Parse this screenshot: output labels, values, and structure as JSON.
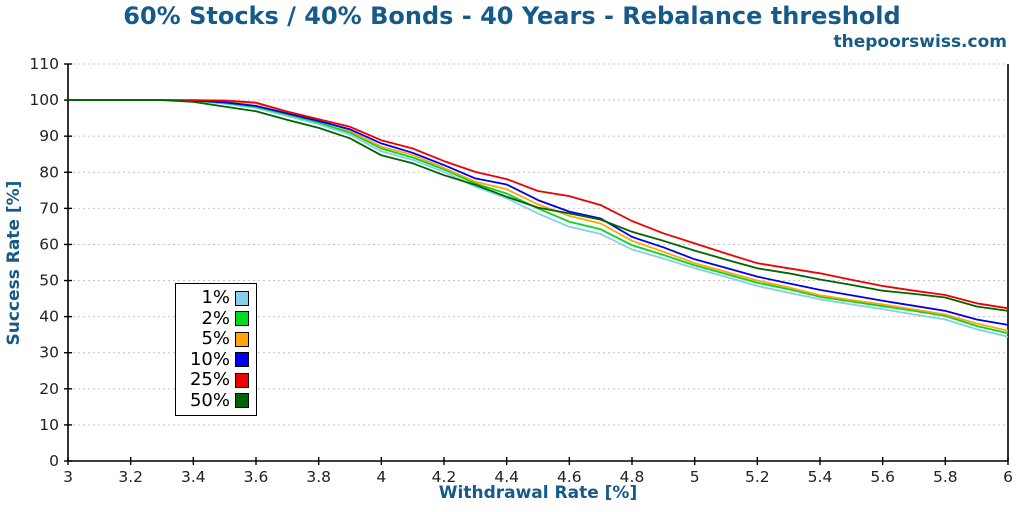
{
  "header": {
    "title": "60% Stocks / 40% Bonds - 40 Years - Rebalance threshold",
    "watermark": "thepoorswiss.com"
  },
  "chart_data": {
    "type": "line",
    "title": "60% Stocks / 40% Bonds - 40 Years - Rebalance threshold",
    "xlabel": "Withdrawal Rate [%]",
    "ylabel": "Success Rate [%]",
    "xlim": [
      3,
      6
    ],
    "ylim": [
      0,
      110
    ],
    "xticks": [
      3,
      3.2,
      3.4,
      3.6,
      3.8,
      4,
      4.2,
      4.4,
      4.6,
      4.8,
      5,
      5.2,
      5.4,
      5.6,
      5.8,
      6
    ],
    "yticks": [
      0,
      10,
      20,
      30,
      40,
      50,
      60,
      70,
      80,
      90,
      100,
      110
    ],
    "grid": "horizontal-dashed",
    "grid_color": "#c4c4c4",
    "legend_position": "left-center",
    "x": [
      3.0,
      3.1,
      3.2,
      3.3,
      3.4,
      3.5,
      3.6,
      3.7,
      3.8,
      3.9,
      4.0,
      4.1,
      4.2,
      4.3,
      4.4,
      4.5,
      4.6,
      4.7,
      4.8,
      4.9,
      5.0,
      5.1,
      5.2,
      5.3,
      5.4,
      5.5,
      5.6,
      5.7,
      5.8,
      5.9,
      6.0
    ],
    "series": [
      {
        "name": "1%",
        "color": "#87ceeb",
        "values": [
          100,
          100,
          100,
          100,
          99.8,
          99.0,
          97.8,
          95.6,
          93.3,
          90.4,
          85.8,
          83.4,
          80.1,
          76.0,
          72.8,
          68.6,
          64.9,
          62.9,
          58.6,
          56.1,
          53.4,
          51.0,
          48.5,
          46.6,
          44.8,
          43.4,
          42.1,
          40.6,
          39.2,
          36.5,
          34.4
        ]
      },
      {
        "name": "2%",
        "color": "#00d921",
        "values": [
          100,
          100,
          100,
          100,
          99.9,
          99.2,
          98.1,
          96.0,
          93.8,
          91.0,
          86.6,
          84.1,
          80.8,
          76.9,
          74.1,
          70.0,
          66.3,
          64.2,
          59.8,
          57.1,
          54.2,
          51.8,
          49.4,
          47.6,
          45.5,
          44.2,
          42.9,
          41.6,
          40.2,
          37.4,
          35.4
        ]
      },
      {
        "name": "5%",
        "color": "#ffa50a",
        "values": [
          100,
          100,
          100,
          100,
          100,
          99.7,
          99.1,
          96.8,
          94.7,
          91.4,
          87.1,
          84.8,
          81.2,
          77.4,
          75.3,
          71.1,
          67.9,
          65.8,
          61.0,
          58.0,
          54.8,
          52.4,
          50.0,
          48.1,
          45.9,
          44.6,
          43.4,
          42.0,
          40.6,
          38.1,
          36.1
        ]
      },
      {
        "name": "10%",
        "color": "#0000ee",
        "values": [
          100,
          100,
          100,
          100,
          99.9,
          99.4,
          98.4,
          96.3,
          94.2,
          91.9,
          88.0,
          85.4,
          82.0,
          78.3,
          76.6,
          72.3,
          69.1,
          67.2,
          62.1,
          59.2,
          55.9,
          53.5,
          51.1,
          49.2,
          47.4,
          45.9,
          44.4,
          43.0,
          41.6,
          39.2,
          37.7
        ]
      },
      {
        "name": "25%",
        "color": "#ee0000",
        "values": [
          100,
          100,
          100,
          100,
          100,
          99.9,
          99.3,
          96.8,
          94.7,
          92.6,
          88.9,
          86.6,
          83.1,
          80.1,
          78.1,
          74.8,
          73.4,
          70.9,
          66.5,
          63.1,
          60.3,
          57.5,
          54.8,
          53.4,
          52.0,
          50.2,
          48.5,
          47.2,
          46.0,
          43.7,
          42.3
        ]
      },
      {
        "name": "50%",
        "color": "#006400",
        "values": [
          100,
          100,
          100,
          100,
          99.5,
          98.2,
          96.9,
          94.5,
          92.3,
          89.4,
          84.7,
          82.5,
          79.2,
          76.5,
          73.2,
          70.2,
          68.6,
          66.9,
          63.5,
          61.0,
          58.3,
          55.8,
          53.4,
          52.0,
          50.3,
          48.8,
          47.2,
          46.3,
          45.3,
          42.8,
          41.6
        ]
      }
    ]
  }
}
